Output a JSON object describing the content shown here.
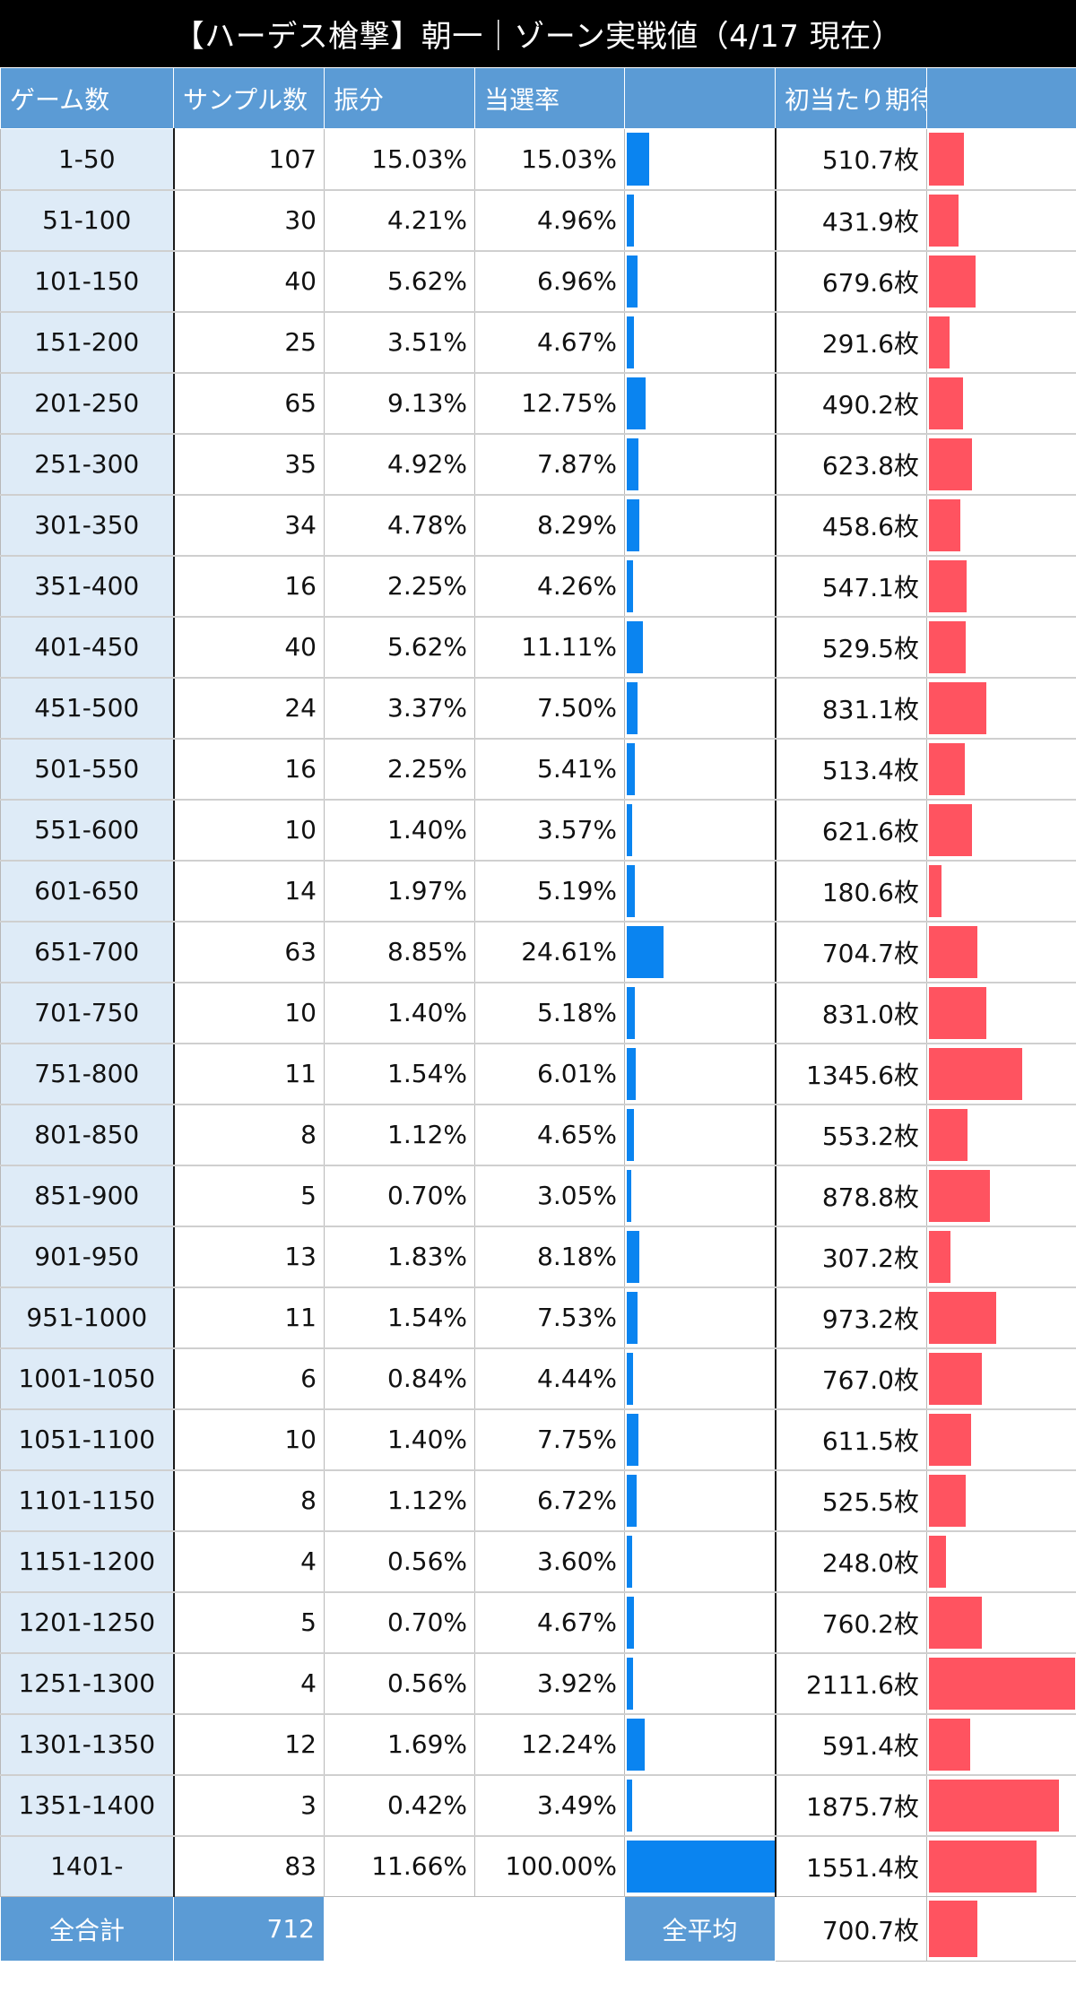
{
  "title": "【ハーデス槍撃】朝一｜ゾーン実戦値（4/17 現在）",
  "headers": [
    "ゲーム数",
    "サンプル数",
    "振分",
    "当選率",
    "",
    "初当たり期待枚数",
    ""
  ],
  "unit": "枚",
  "colors": {
    "header_bg": "#5b9bd5",
    "zone_bg": "#deebf7",
    "rate_bar": "#0a84f0",
    "expect_bar": "#ff5360"
  },
  "chart_data": {
    "type": "table",
    "title": "【ハーデス槍撃】朝一｜ゾーン実戦値（4/17 現在）",
    "columns": [
      "ゲーム数",
      "サンプル数",
      "振分",
      "当選率",
      "初当たり期待枚数"
    ],
    "bar_columns": [
      "当選率",
      "初当たり期待枚数"
    ],
    "rows": [
      {
        "zone": "1-50",
        "samples": "107",
        "share": "15.03%",
        "rate": "15.03%",
        "rate_value": 15.03,
        "expect": "510.7",
        "expect_value": 510.7
      },
      {
        "zone": "51-100",
        "samples": "30",
        "share": "4.21%",
        "rate": "4.96%",
        "rate_value": 4.96,
        "expect": "431.9",
        "expect_value": 431.9
      },
      {
        "zone": "101-150",
        "samples": "40",
        "share": "5.62%",
        "rate": "6.96%",
        "rate_value": 6.96,
        "expect": "679.6",
        "expect_value": 679.6
      },
      {
        "zone": "151-200",
        "samples": "25",
        "share": "3.51%",
        "rate": "4.67%",
        "rate_value": 4.67,
        "expect": "291.6",
        "expect_value": 291.6
      },
      {
        "zone": "201-250",
        "samples": "65",
        "share": "9.13%",
        "rate": "12.75%",
        "rate_value": 12.75,
        "expect": "490.2",
        "expect_value": 490.2
      },
      {
        "zone": "251-300",
        "samples": "35",
        "share": "4.92%",
        "rate": "7.87%",
        "rate_value": 7.87,
        "expect": "623.8",
        "expect_value": 623.8
      },
      {
        "zone": "301-350",
        "samples": "34",
        "share": "4.78%",
        "rate": "8.29%",
        "rate_value": 8.29,
        "expect": "458.6",
        "expect_value": 458.6
      },
      {
        "zone": "351-400",
        "samples": "16",
        "share": "2.25%",
        "rate": "4.26%",
        "rate_value": 4.26,
        "expect": "547.1",
        "expect_value": 547.1
      },
      {
        "zone": "401-450",
        "samples": "40",
        "share": "5.62%",
        "rate": "11.11%",
        "rate_value": 11.11,
        "expect": "529.5",
        "expect_value": 529.5
      },
      {
        "zone": "451-500",
        "samples": "24",
        "share": "3.37%",
        "rate": "7.50%",
        "rate_value": 7.5,
        "expect": "831.1",
        "expect_value": 831.1
      },
      {
        "zone": "501-550",
        "samples": "16",
        "share": "2.25%",
        "rate": "5.41%",
        "rate_value": 5.41,
        "expect": "513.4",
        "expect_value": 513.4
      },
      {
        "zone": "551-600",
        "samples": "10",
        "share": "1.40%",
        "rate": "3.57%",
        "rate_value": 3.57,
        "expect": "621.6",
        "expect_value": 621.6
      },
      {
        "zone": "601-650",
        "samples": "14",
        "share": "1.97%",
        "rate": "5.19%",
        "rate_value": 5.19,
        "expect": "180.6",
        "expect_value": 180.6
      },
      {
        "zone": "651-700",
        "samples": "63",
        "share": "8.85%",
        "rate": "24.61%",
        "rate_value": 24.61,
        "expect": "704.7",
        "expect_value": 704.7
      },
      {
        "zone": "701-750",
        "samples": "10",
        "share": "1.40%",
        "rate": "5.18%",
        "rate_value": 5.18,
        "expect": "831.0",
        "expect_value": 831.0
      },
      {
        "zone": "751-800",
        "samples": "11",
        "share": "1.54%",
        "rate": "6.01%",
        "rate_value": 6.01,
        "expect": "1345.6",
        "expect_value": 1345.6
      },
      {
        "zone": "801-850",
        "samples": "8",
        "share": "1.12%",
        "rate": "4.65%",
        "rate_value": 4.65,
        "expect": "553.2",
        "expect_value": 553.2
      },
      {
        "zone": "851-900",
        "samples": "5",
        "share": "0.70%",
        "rate": "3.05%",
        "rate_value": 3.05,
        "expect": "878.8",
        "expect_value": 878.8
      },
      {
        "zone": "901-950",
        "samples": "13",
        "share": "1.83%",
        "rate": "8.18%",
        "rate_value": 8.18,
        "expect": "307.2",
        "expect_value": 307.2
      },
      {
        "zone": "951-1000",
        "samples": "11",
        "share": "1.54%",
        "rate": "7.53%",
        "rate_value": 7.53,
        "expect": "973.2",
        "expect_value": 973.2
      },
      {
        "zone": "1001-1050",
        "samples": "6",
        "share": "0.84%",
        "rate": "4.44%",
        "rate_value": 4.44,
        "expect": "767.0",
        "expect_value": 767.0
      },
      {
        "zone": "1051-1100",
        "samples": "10",
        "share": "1.40%",
        "rate": "7.75%",
        "rate_value": 7.75,
        "expect": "611.5",
        "expect_value": 611.5
      },
      {
        "zone": "1101-1150",
        "samples": "8",
        "share": "1.12%",
        "rate": "6.72%",
        "rate_value": 6.72,
        "expect": "525.5",
        "expect_value": 525.5
      },
      {
        "zone": "1151-1200",
        "samples": "4",
        "share": "0.56%",
        "rate": "3.60%",
        "rate_value": 3.6,
        "expect": "248.0",
        "expect_value": 248.0
      },
      {
        "zone": "1201-1250",
        "samples": "5",
        "share": "0.70%",
        "rate": "4.67%",
        "rate_value": 4.67,
        "expect": "760.2",
        "expect_value": 760.2
      },
      {
        "zone": "1251-1300",
        "samples": "4",
        "share": "0.56%",
        "rate": "3.92%",
        "rate_value": 3.92,
        "expect": "2111.6",
        "expect_value": 2111.6
      },
      {
        "zone": "1301-1350",
        "samples": "12",
        "share": "1.69%",
        "rate": "12.24%",
        "rate_value": 12.24,
        "expect": "591.4",
        "expect_value": 591.4
      },
      {
        "zone": "1351-1400",
        "samples": "3",
        "share": "0.42%",
        "rate": "3.49%",
        "rate_value": 3.49,
        "expect": "1875.7",
        "expect_value": 1875.7
      },
      {
        "zone": "1401-",
        "samples": "83",
        "share": "11.66%",
        "rate": "100.00%",
        "rate_value": 100.0,
        "expect": "1551.4",
        "expect_value": 1551.4
      }
    ],
    "rate_max": 100,
    "expect_max": 2111.6,
    "footer": {
      "total_label": "全合計",
      "total_value": "712",
      "avg_label": "全平均",
      "avg_value": "700.7",
      "avg_expect_value": 700.7
    }
  }
}
